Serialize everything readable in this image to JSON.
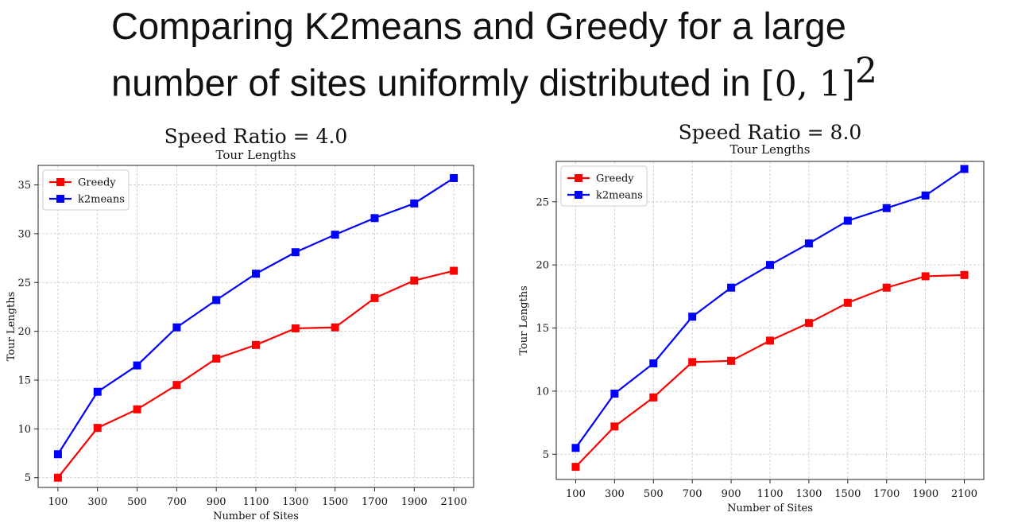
{
  "slide": {
    "title_line1": "Comparing  K2means and Greedy for a large",
    "title_line2": "number of sites uniformly distributed in ",
    "title_math": "[0, 1]",
    "title_exponent": "2"
  },
  "chart_data": [
    {
      "type": "line",
      "title": "Speed Ratio = 4.0",
      "subtitle": "Tour Lengths",
      "xlabel": "Number of Sites",
      "ylabel": "Tour Lengths",
      "x": [
        100,
        300,
        500,
        700,
        900,
        1100,
        1300,
        1500,
        1700,
        1900,
        2100
      ],
      "xlim": [
        0,
        2200
      ],
      "ylim": [
        4,
        37
      ],
      "yticks": [
        5,
        10,
        15,
        20,
        25,
        30,
        35
      ],
      "grid": true,
      "legend": "top-left",
      "series": [
        {
          "name": "Greedy",
          "color": "#ff0000",
          "values": [
            5.0,
            10.1,
            12.0,
            14.5,
            17.2,
            18.6,
            20.3,
            20.4,
            23.4,
            25.2,
            26.2
          ]
        },
        {
          "name": "k2means",
          "color": "#0000ff",
          "values": [
            7.4,
            13.8,
            16.5,
            20.4,
            23.2,
            25.9,
            28.1,
            29.9,
            31.6,
            33.1,
            35.7
          ]
        }
      ]
    },
    {
      "type": "line",
      "title": "Speed Ratio = 8.0",
      "subtitle": "Tour Lengths",
      "xlabel": "Number of Sites",
      "ylabel": "Tour Lengths",
      "x": [
        100,
        300,
        500,
        700,
        900,
        1100,
        1300,
        1500,
        1700,
        1900,
        2100
      ],
      "xlim": [
        0,
        2200
      ],
      "ylim": [
        3,
        28.2
      ],
      "yticks": [
        5,
        10,
        15,
        20,
        25
      ],
      "grid": true,
      "legend": "top-left",
      "series": [
        {
          "name": "Greedy",
          "color": "#ff0000",
          "values": [
            4.0,
            7.2,
            9.5,
            12.3,
            12.4,
            14.0,
            15.4,
            17.0,
            18.2,
            19.1,
            19.2
          ]
        },
        {
          "name": "k2means",
          "color": "#0000ff",
          "values": [
            5.5,
            9.8,
            12.2,
            15.9,
            18.2,
            20.0,
            21.7,
            23.5,
            24.5,
            25.5,
            27.6
          ]
        }
      ]
    }
  ]
}
